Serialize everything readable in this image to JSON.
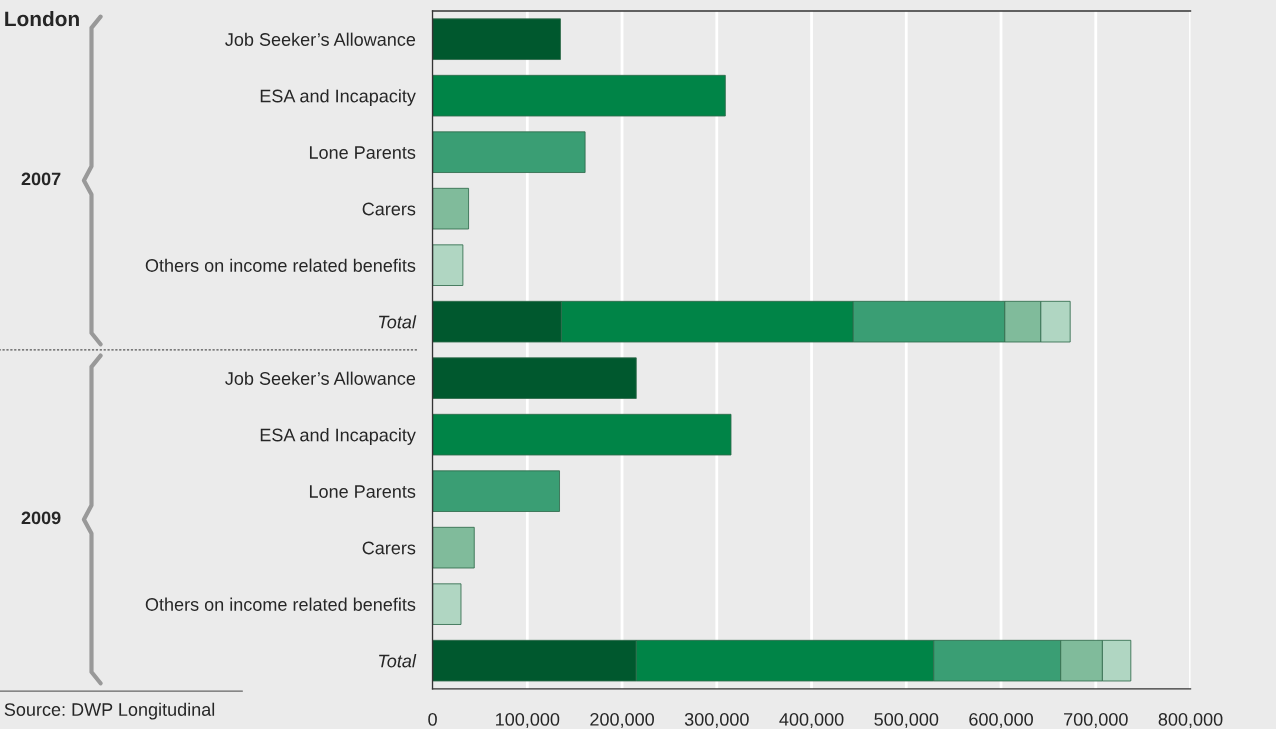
{
  "chart_data": {
    "type": "bar",
    "orientation": "horizontal",
    "stacked": true,
    "title": "London",
    "categories": [
      "Job Seeker’s Allowance",
      "ESA and Incapacity",
      "Lone Parents",
      "Carers",
      "Others on income related benefits",
      "Total",
      "Job Seeker’s Allowance",
      "ESA and Incapacity",
      "Lone Parents",
      "Carers",
      "Others on income related benefits",
      "Total"
    ],
    "series": [
      {
        "color": "#00582e",
        "values": [
          135000,
          null,
          null,
          null,
          null,
          136000,
          215000,
          null,
          null,
          null,
          null,
          215000
        ]
      },
      {
        "color": "#008447",
        "values": [
          null,
          309000,
          null,
          null,
          null,
          308000,
          null,
          315000,
          null,
          null,
          null,
          314000
        ]
      },
      {
        "color": "#3a9e74",
        "values": [
          null,
          null,
          161000,
          null,
          null,
          160000,
          null,
          null,
          134000,
          null,
          null,
          134000
        ]
      },
      {
        "color": "#80bb9b",
        "values": [
          null,
          null,
          null,
          38000,
          null,
          38000,
          null,
          null,
          null,
          44000,
          null,
          44000
        ]
      },
      {
        "color": "#b0d6c2",
        "values": [
          null,
          null,
          null,
          null,
          32000,
          31000,
          null,
          null,
          null,
          null,
          30000,
          30000
        ]
      }
    ],
    "xlim": [
      0,
      800000
    ],
    "xticks": [
      0,
      {
        "value": 100000,
        "label": "100,000"
      },
      {
        "value": 200000,
        "label": "200,000"
      },
      {
        "value": 300000,
        "label": "300,000"
      },
      {
        "value": 400000,
        "label": "400,000"
      },
      {
        "value": 500000,
        "label": "500,000"
      },
      {
        "value": 600000,
        "label": "600,000"
      },
      {
        "value": 700000,
        "label": "700,000"
      },
      {
        "value": 800000,
        "label": "800,000"
      }
    ],
    "grid": "x",
    "annotations": [
      "2007",
      "2009",
      "Source: DWP Longitudinal"
    ]
  }
}
